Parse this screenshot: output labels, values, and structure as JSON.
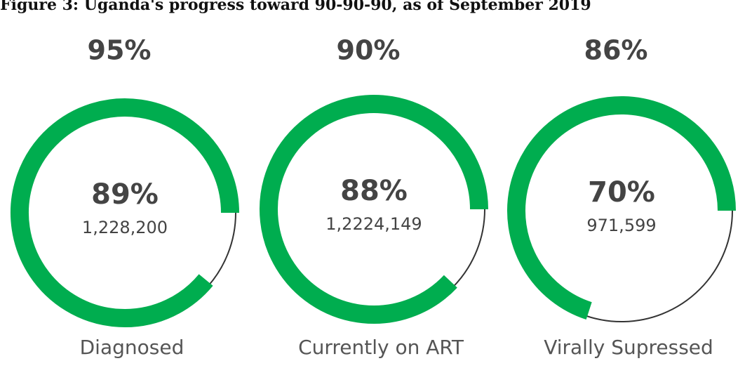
{
  "chart_data": {
    "type": "donut",
    "title": "Figure 3: Uganda's progress toward 90-90-90, as of September 2019",
    "categories": [
      "Diagnosed",
      "Currently on ART",
      "Virally Supressed"
    ],
    "targets": [
      95,
      90,
      86
    ],
    "target_labels": [
      "95%",
      "90%",
      "86%"
    ],
    "values": [
      89,
      88,
      70
    ],
    "value_labels": [
      "89%",
      "88%",
      "70%"
    ],
    "counts": [
      1228200,
      12224149,
      971599
    ],
    "count_labels": [
      "1,228,200",
      "1,2224,149",
      "971,599"
    ],
    "ylim": [
      0,
      100
    ],
    "color": "#00ad4f",
    "track_color": "#333333"
  }
}
